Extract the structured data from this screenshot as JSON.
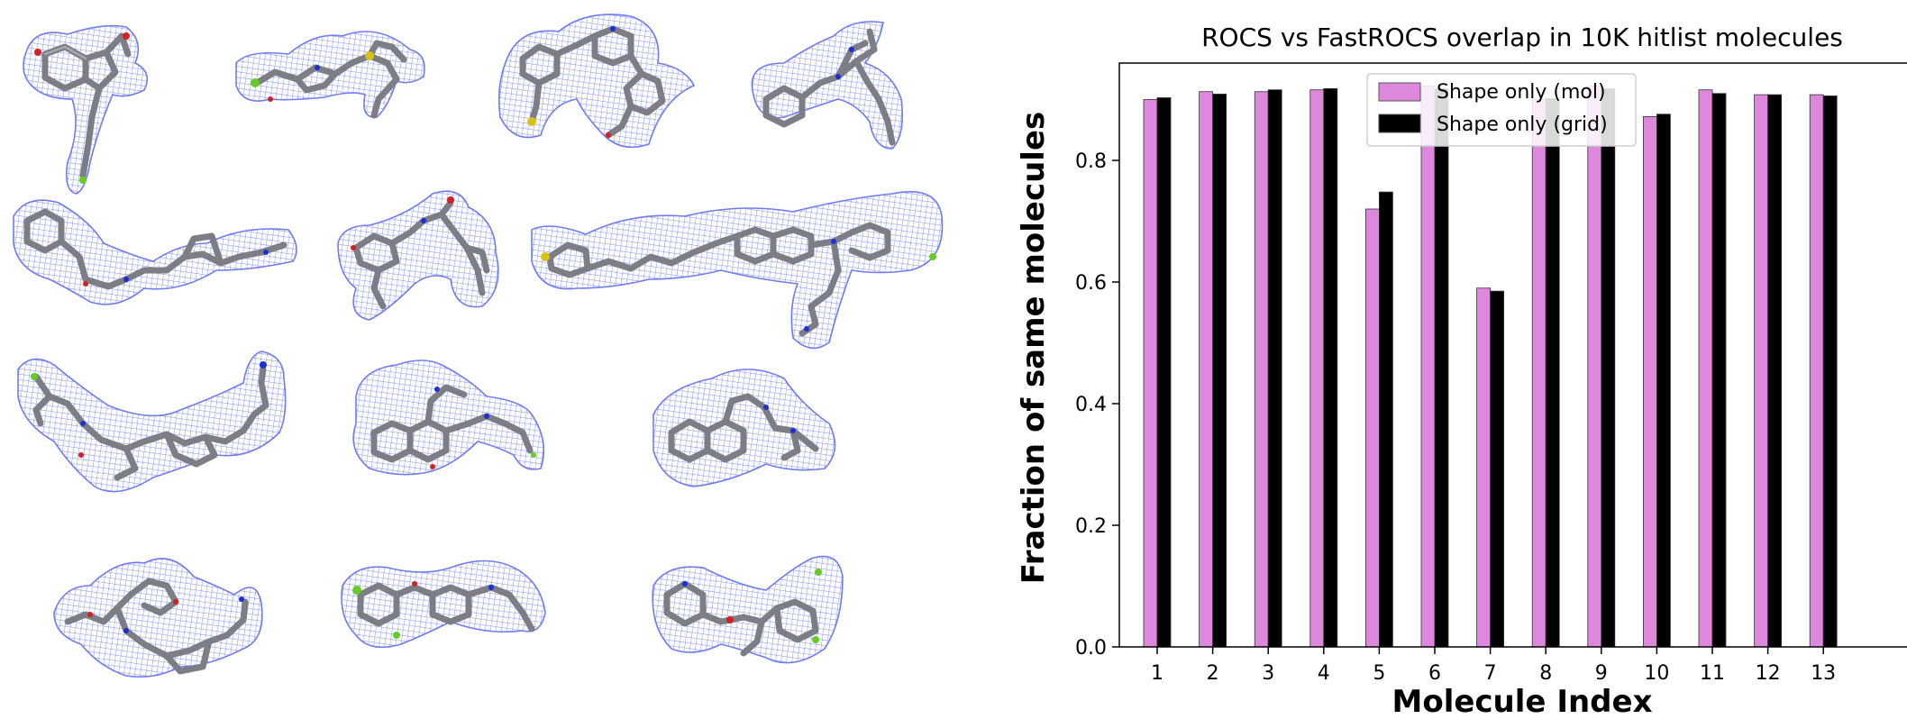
{
  "colors": {
    "mesh": "#4a5ef0",
    "carbon": "#7d7d85",
    "nitrogen": "#1f2fd8",
    "oxygen": "#d42020",
    "fluorine": "#66cc22",
    "sulfur": "#d8c21a",
    "mol_series": "#dd88dd",
    "grid_series": "#000000"
  },
  "molecule_panel": {
    "layout": "4 x 3 grid of ligand 3D structures with blue surface mesh",
    "count": 12
  },
  "chart_data": {
    "type": "bar",
    "title": "ROCS vs FastROCS overlap in 10K hitlist molecules",
    "xlabel": "Molecule Index",
    "ylabel": "Fraction of same molecules",
    "categories": [
      "1",
      "2",
      "3",
      "4",
      "5",
      "6",
      "7",
      "8",
      "9",
      "10",
      "11",
      "12",
      "13"
    ],
    "ylim": [
      0,
      0.96
    ],
    "yticks": [
      "0.0",
      "0.2",
      "0.4",
      "0.6",
      "0.8"
    ],
    "yticks_values": [
      0,
      0.2,
      0.4,
      0.6,
      0.8
    ],
    "legend_position": "upper-center",
    "series": [
      {
        "name": "Shape only (mol)",
        "color": "#dd88dd",
        "values": [
          0.9,
          0.913,
          0.913,
          0.916,
          0.72,
          0.922,
          0.59,
          0.9,
          0.922,
          0.872,
          0.916,
          0.908,
          0.908
        ]
      },
      {
        "name": "Shape only (grid)",
        "color": "#000000",
        "values": [
          0.903,
          0.909,
          0.916,
          0.918,
          0.748,
          0.918,
          0.585,
          0.902,
          0.918,
          0.876,
          0.91,
          0.908,
          0.906
        ]
      }
    ]
  }
}
